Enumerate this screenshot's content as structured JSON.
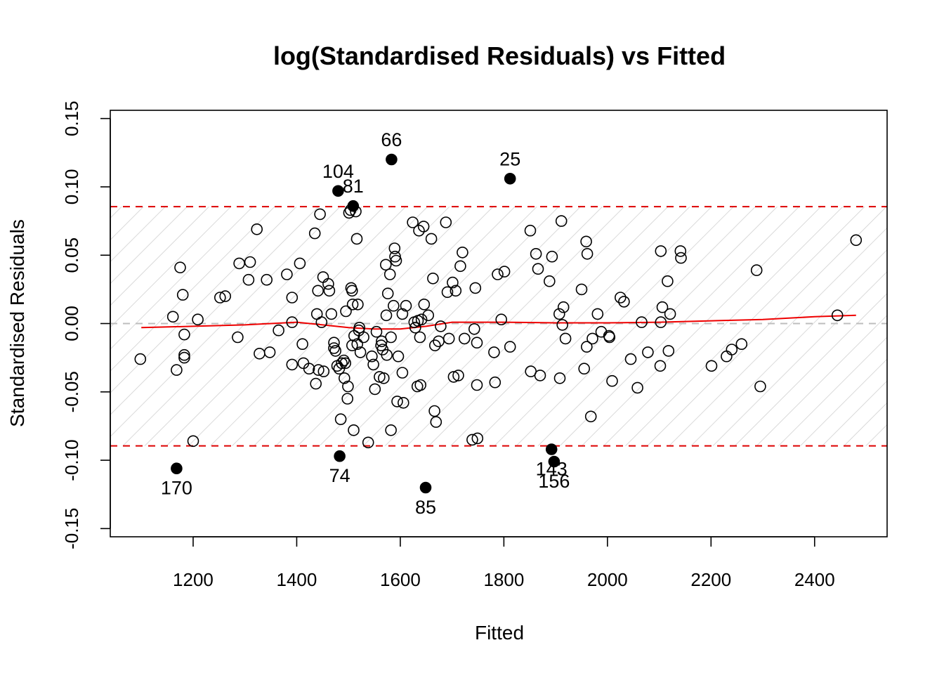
{
  "chart_data": {
    "type": "scatter",
    "title": "log(Standardised Residuals) vs Fitted",
    "xlabel": "Fitted",
    "ylabel": "Standardised Residuals",
    "xlim": [
      1040,
      2540
    ],
    "ylim": [
      -0.156,
      0.156
    ],
    "x_ticks": [
      1200,
      1400,
      1600,
      1800,
      2000,
      2200,
      2400
    ],
    "y_ticks": [
      -0.15,
      -0.1,
      -0.05,
      0.0,
      0.05,
      0.1,
      0.15
    ],
    "x_tick_labels": [
      "1200",
      "1400",
      "1600",
      "1800",
      "2000",
      "2200",
      "2400"
    ],
    "y_tick_labels": [
      "-0.15",
      "-0.10",
      "-0.05",
      "0.00",
      "0.05",
      "0.10",
      "0.15"
    ],
    "y_tick_label_shown": [
      true,
      true,
      true,
      true,
      true,
      true,
      true
    ],
    "grid": false,
    "reference_lines": {
      "zero": 0.0,
      "upper_bound": 0.0855,
      "lower_bound": -0.0895,
      "zero_color": "#bebebe",
      "bound_color": "#dd0000"
    },
    "band_hatch_color": "#d0d0d0",
    "smooth_color": "#ee0000",
    "smooth_line": [
      [
        1100,
        -0.003
      ],
      [
        1200,
        -0.002
      ],
      [
        1300,
        -0.001
      ],
      [
        1400,
        0.001
      ],
      [
        1450,
        -0.001
      ],
      [
        1500,
        -0.003
      ],
      [
        1550,
        -0.004
      ],
      [
        1600,
        -0.004
      ],
      [
        1650,
        -0.002
      ],
      [
        1700,
        0.001
      ],
      [
        1800,
        0.001
      ],
      [
        1900,
        0.0005
      ],
      [
        2000,
        0.0005
      ],
      [
        2100,
        0.001
      ],
      [
        2200,
        0.002
      ],
      [
        2300,
        0.003
      ],
      [
        2400,
        0.005
      ],
      [
        2480,
        0.006
      ]
    ],
    "outliers": [
      {
        "x": 1583,
        "y": 0.12,
        "label": "66",
        "label_pos": "above"
      },
      {
        "x": 1812,
        "y": 0.106,
        "label": "25",
        "label_pos": "above"
      },
      {
        "x": 1480,
        "y": 0.097,
        "label": "104",
        "label_pos": "above"
      },
      {
        "x": 1509,
        "y": 0.086,
        "label": "81",
        "label_pos": "above"
      },
      {
        "x": 1168,
        "y": -0.106,
        "label": "170",
        "label_pos": "below"
      },
      {
        "x": 1483,
        "y": -0.097,
        "label": "74",
        "label_pos": "below"
      },
      {
        "x": 1649,
        "y": -0.12,
        "label": "85",
        "label_pos": "below"
      },
      {
        "x": 1892,
        "y": -0.092,
        "label": "143",
        "label_pos": "below"
      },
      {
        "x": 1897,
        "y": -0.101,
        "label": "156",
        "label_pos": "below"
      }
    ],
    "points": [
      [
        1098,
        -0.026
      ],
      [
        1161,
        0.005
      ],
      [
        1168,
        -0.034
      ],
      [
        1175,
        0.041
      ],
      [
        1180,
        0.021
      ],
      [
        1183,
        -0.008
      ],
      [
        1183,
        -0.023
      ],
      [
        1183,
        -0.025
      ],
      [
        1200,
        -0.086
      ],
      [
        1209,
        0.003
      ],
      [
        1252,
        0.019
      ],
      [
        1262,
        0.02
      ],
      [
        1286,
        -0.01
      ],
      [
        1289,
        0.044
      ],
      [
        1307,
        0.032
      ],
      [
        1310,
        0.045
      ],
      [
        1323,
        0.069
      ],
      [
        1328,
        -0.022
      ],
      [
        1342,
        0.032
      ],
      [
        1348,
        -0.021
      ],
      [
        1365,
        -0.005
      ],
      [
        1381,
        0.036
      ],
      [
        1391,
        0.019
      ],
      [
        1391,
        0.001
      ],
      [
        1391,
        -0.03
      ],
      [
        1406,
        0.044
      ],
      [
        1411,
        -0.015
      ],
      [
        1413,
        -0.029
      ],
      [
        1424,
        -0.033
      ],
      [
        1435,
        0.066
      ],
      [
        1437,
        -0.044
      ],
      [
        1439,
        0.007
      ],
      [
        1441,
        0.024
      ],
      [
        1442,
        -0.034
      ],
      [
        1445,
        0.08
      ],
      [
        1448,
        0.001
      ],
      [
        1451,
        0.034
      ],
      [
        1452,
        -0.035
      ],
      [
        1461,
        0.029
      ],
      [
        1463,
        0.024
      ],
      [
        1467,
        0.007
      ],
      [
        1472,
        -0.014
      ],
      [
        1472,
        -0.018
      ],
      [
        1475,
        -0.02
      ],
      [
        1478,
        -0.031
      ],
      [
        1482,
        -0.033
      ],
      [
        1485,
        -0.07
      ],
      [
        1487,
        -0.029
      ],
      [
        1491,
        -0.027
      ],
      [
        1492,
        -0.04
      ],
      [
        1494,
        -0.029
      ],
      [
        1495,
        0.009
      ],
      [
        1498,
        -0.055
      ],
      [
        1499,
        -0.046
      ],
      [
        1501,
        0.081
      ],
      [
        1504,
        0.083
      ],
      [
        1505,
        0.026
      ],
      [
        1507,
        -0.016
      ],
      [
        1507,
        0.024
      ],
      [
        1508,
        0.014
      ],
      [
        1510,
        -0.078
      ],
      [
        1511,
        -0.009
      ],
      [
        1514,
        0.082
      ],
      [
        1516,
        0.062
      ],
      [
        1517,
        -0.015
      ],
      [
        1518,
        0.014
      ],
      [
        1520,
        -0.005
      ],
      [
        1521,
        -0.003
      ],
      [
        1523,
        -0.021
      ],
      [
        1529,
        -0.01
      ],
      [
        1538,
        -0.087
      ],
      [
        1545,
        -0.024
      ],
      [
        1548,
        -0.03
      ],
      [
        1551,
        -0.048
      ],
      [
        1554,
        -0.006
      ],
      [
        1560,
        -0.039
      ],
      [
        1563,
        -0.016
      ],
      [
        1564,
        -0.013
      ],
      [
        1566,
        -0.019
      ],
      [
        1568,
        -0.04
      ],
      [
        1572,
        0.043
      ],
      [
        1573,
        0.006
      ],
      [
        1574,
        -0.023
      ],
      [
        1576,
        0.022
      ],
      [
        1580,
        0.036
      ],
      [
        1582,
        -0.01
      ],
      [
        1582,
        -0.078
      ],
      [
        1587,
        0.013
      ],
      [
        1589,
        0.055
      ],
      [
        1590,
        0.049
      ],
      [
        1592,
        0.046
      ],
      [
        1594,
        -0.057
      ],
      [
        1596,
        -0.024
      ],
      [
        1604,
        0.007
      ],
      [
        1604,
        -0.036
      ],
      [
        1606,
        -0.058
      ],
      [
        1611,
        0.013
      ],
      [
        1624,
        0.074
      ],
      [
        1627,
        0.001
      ],
      [
        1629,
        -0.003
      ],
      [
        1633,
        -0.046
      ],
      [
        1634,
        0.002
      ],
      [
        1636,
        0.068
      ],
      [
        1638,
        -0.01
      ],
      [
        1639,
        -0.045
      ],
      [
        1641,
        0.003
      ],
      [
        1645,
        0.071
      ],
      [
        1646,
        0.014
      ],
      [
        1654,
        0.006
      ],
      [
        1660,
        0.062
      ],
      [
        1663,
        0.033
      ],
      [
        1666,
        -0.064
      ],
      [
        1667,
        -0.016
      ],
      [
        1669,
        -0.072
      ],
      [
        1674,
        -0.013
      ],
      [
        1678,
        -0.002
      ],
      [
        1688,
        0.074
      ],
      [
        1691,
        0.023
      ],
      [
        1694,
        -0.011
      ],
      [
        1701,
        0.03
      ],
      [
        1703,
        -0.039
      ],
      [
        1707,
        0.024
      ],
      [
        1712,
        -0.038
      ],
      [
        1716,
        0.042
      ],
      [
        1720,
        0.052
      ],
      [
        1724,
        -0.011
      ],
      [
        1739,
        -0.085
      ],
      [
        1743,
        -0.004
      ],
      [
        1745,
        0.026
      ],
      [
        1748,
        -0.014
      ],
      [
        1748,
        -0.045
      ],
      [
        1749,
        -0.084
      ],
      [
        1781,
        -0.021
      ],
      [
        1783,
        -0.043
      ],
      [
        1788,
        0.036
      ],
      [
        1795,
        0.003
      ],
      [
        1801,
        0.038
      ],
      [
        1812,
        -0.017
      ],
      [
        1851,
        0.068
      ],
      [
        1852,
        -0.035
      ],
      [
        1862,
        0.051
      ],
      [
        1866,
        0.04
      ],
      [
        1870,
        -0.038
      ],
      [
        1888,
        0.031
      ],
      [
        1893,
        0.049
      ],
      [
        1907,
        0.007
      ],
      [
        1908,
        -0.04
      ],
      [
        1911,
        0.075
      ],
      [
        1913,
        -0.001
      ],
      [
        1915,
        0.012
      ],
      [
        1919,
        -0.011
      ],
      [
        1950,
        0.025
      ],
      [
        1955,
        -0.033
      ],
      [
        1959,
        0.06
      ],
      [
        1960,
        -0.017
      ],
      [
        1961,
        0.051
      ],
      [
        1968,
        -0.068
      ],
      [
        1971,
        -0.011
      ],
      [
        1981,
        0.007
      ],
      [
        1988,
        -0.006
      ],
      [
        2003,
        -0.009
      ],
      [
        2004,
        -0.01
      ],
      [
        2009,
        -0.042
      ],
      [
        2025,
        0.019
      ],
      [
        2032,
        0.016
      ],
      [
        2045,
        -0.026
      ],
      [
        2058,
        -0.047
      ],
      [
        2066,
        0.001
      ],
      [
        2078,
        -0.021
      ],
      [
        2102,
        -0.031
      ],
      [
        2103,
        0.053
      ],
      [
        2103,
        0.001
      ],
      [
        2106,
        0.012
      ],
      [
        2116,
        0.031
      ],
      [
        2118,
        -0.02
      ],
      [
        2121,
        0.007
      ],
      [
        2141,
        0.053
      ],
      [
        2142,
        0.048
      ],
      [
        2201,
        -0.031
      ],
      [
        2230,
        -0.024
      ],
      [
        2240,
        -0.019
      ],
      [
        2259,
        -0.015
      ],
      [
        2288,
        0.039
      ],
      [
        2295,
        -0.046
      ],
      [
        2444,
        0.006
      ],
      [
        2480,
        0.061
      ]
    ]
  }
}
